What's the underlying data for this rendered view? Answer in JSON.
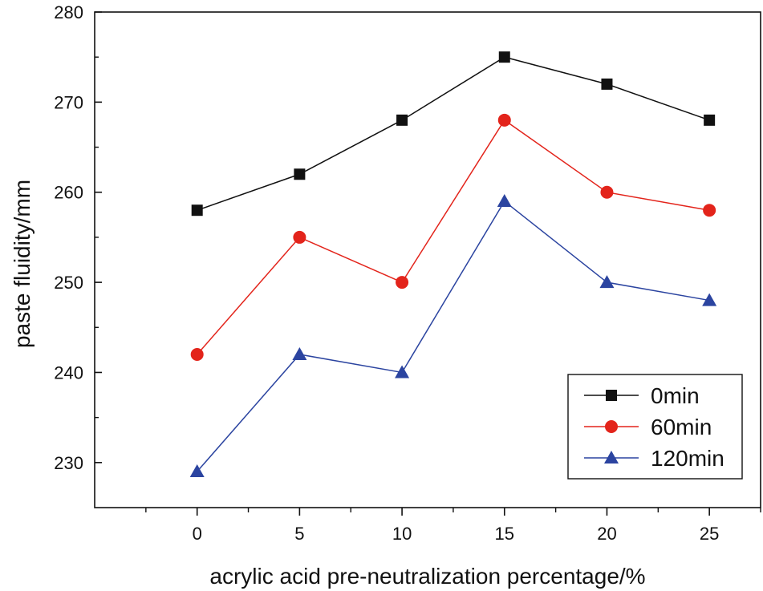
{
  "chart_data": {
    "type": "line",
    "title": "",
    "xlabel": "acrylic acid pre-neutralization percentage/%",
    "ylabel": "paste fluidity/mm",
    "x": [
      0,
      5,
      10,
      15,
      20,
      25
    ],
    "xticks": [
      "0",
      "5",
      "10",
      "15",
      "20",
      "25"
    ],
    "yticks": [
      "230",
      "240",
      "250",
      "260",
      "270",
      "280"
    ],
    "xlim": [
      -5,
      27.5
    ],
    "ylim": [
      225,
      280
    ],
    "grid": false,
    "legend_position": "bottom-right",
    "series": [
      {
        "name": "0min",
        "color": "#111111",
        "marker": "square",
        "values": [
          258,
          262,
          268,
          275,
          272,
          268
        ]
      },
      {
        "name": "60min",
        "color": "#e3241b",
        "marker": "circle",
        "values": [
          242,
          255,
          250,
          268,
          260,
          258
        ]
      },
      {
        "name": "120min",
        "color": "#2b44a0",
        "marker": "triangle",
        "values": [
          229,
          242,
          240,
          259,
          250,
          248
        ]
      }
    ]
  }
}
